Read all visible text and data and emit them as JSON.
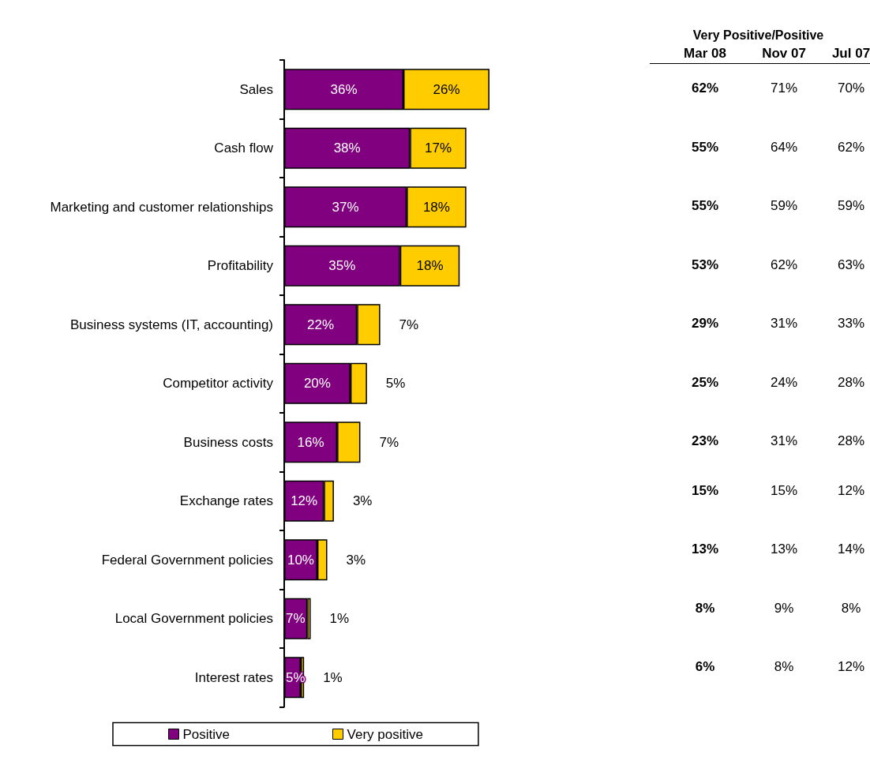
{
  "chart_data": [
    {
      "type": "bar",
      "orientation": "horizontal",
      "stacked": true,
      "legend": "bottom",
      "categories": [
        "Sales",
        "Cash flow",
        "Marketing and customer relationships",
        "Profitability",
        "Business systems (IT, accounting)",
        "Competitor activity",
        "Business costs",
        "Exchange rates",
        "Federal Government policies",
        "Local Government policies",
        "Interest rates"
      ],
      "series": [
        {
          "name": "Positive",
          "color": "#800080",
          "values": [
            36,
            38,
            37,
            35,
            22,
            20,
            16,
            12,
            10,
            7,
            5
          ],
          "value_labels": [
            "36%",
            "38%",
            "37%",
            "35%",
            "22%",
            "20%",
            "16%",
            "12%",
            "10%",
            "7%",
            "5%"
          ]
        },
        {
          "name": "Very positive",
          "color": "#ffcc00",
          "values": [
            26,
            17,
            18,
            18,
            7,
            5,
            7,
            3,
            3,
            1,
            1
          ],
          "value_labels": [
            "26%",
            "17%",
            "18%",
            "18%",
            "7%",
            "5%",
            "7%",
            "3%",
            "3%",
            "1%",
            "1%"
          ]
        }
      ]
    },
    {
      "type": "other",
      "title": "Very Positive/Positive",
      "categories": [
        "Mar 08",
        "Nov 07",
        "Jul 07"
      ],
      "cell_labels": [
        [
          "62%",
          "71%",
          "70%"
        ],
        [
          "55%",
          "64%",
          "62%"
        ],
        [
          "55%",
          "59%",
          "59%"
        ],
        [
          "53%",
          "62%",
          "63%"
        ],
        [
          "29%",
          "31%",
          "33%"
        ],
        [
          "25%",
          "24%",
          "28%"
        ],
        [
          "23%",
          "31%",
          "28%"
        ],
        [
          "15%",
          "15%",
          "12%"
        ],
        [
          "13%",
          "13%",
          "14%"
        ],
        [
          "8%",
          "9%",
          "8%"
        ],
        [
          "6%",
          "8%",
          "12%"
        ]
      ]
    }
  ]
}
